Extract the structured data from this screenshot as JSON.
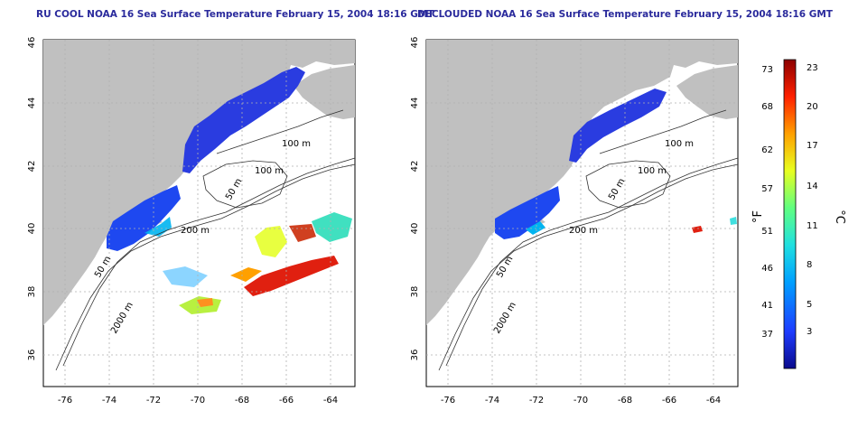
{
  "left_map": {
    "title": "RU COOL NOAA 16 Sea Surface Temperature February 15, 2004 18:16 GMT",
    "contour_labels": [
      "100 m",
      "100 m",
      "50 m",
      "200 m",
      "50 m",
      "2000 m"
    ]
  },
  "right_map": {
    "title": "DECLOUDED NOAA 16 Sea Surface Temperature February 15, 2004 18:16 GMT",
    "contour_labels": [
      "100 m",
      "100 m",
      "50 m",
      "200 m",
      "50 m",
      "2000 m"
    ]
  },
  "axes": {
    "lon_ticks": [
      "-76",
      "-74",
      "-72",
      "-70",
      "-68",
      "-66",
      "-64"
    ],
    "lat_ticks": [
      "36",
      "38",
      "40",
      "42",
      "44",
      "46"
    ],
    "lon_range": [
      -77,
      -63
    ],
    "lat_range": [
      35,
      46
    ]
  },
  "colorbar": {
    "fahrenheit_label": "°F",
    "celsius_label": "°C",
    "fahrenheit_ticks": [
      "73",
      "68",
      "62",
      "57",
      "51",
      "46",
      "41",
      "37"
    ],
    "celsius_ticks": [
      "23",
      "20",
      "17",
      "14",
      "11",
      "8",
      "5",
      "3"
    ],
    "colors": [
      "#0a0a8c",
      "#1e3cff",
      "#00a0ff",
      "#20e0e0",
      "#60ff80",
      "#e8ff20",
      "#ffa000",
      "#ff2000",
      "#8c0000"
    ]
  },
  "colors": {
    "land": "#c0c0c0",
    "title": "#2a2a9c",
    "grid": "#b0b0b0"
  }
}
